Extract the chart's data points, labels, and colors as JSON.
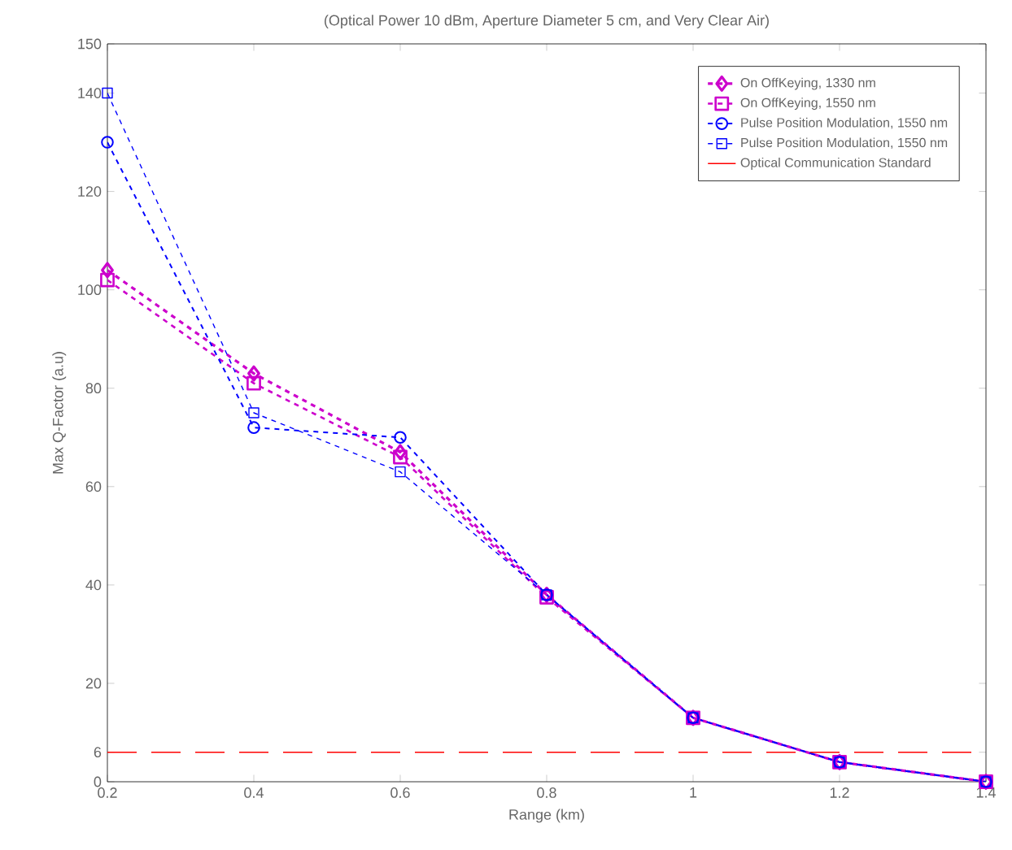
{
  "chart_data": {
    "type": "line",
    "title": "(Optical Power 10 dBm, Aperture Diameter 5 cm, and Very Clear Air)",
    "xlabel": "Range (km)",
    "ylabel": "Max Q-Factor (a.u)",
    "x": [
      0.2,
      0.4,
      0.6,
      0.8,
      1.0,
      1.2,
      1.4
    ],
    "xlim": [
      0.2,
      1.4
    ],
    "xticks": [
      0.2,
      0.4,
      0.6,
      0.8,
      {
        "value": 1.0,
        "label": "1"
      },
      1.2,
      1.4
    ],
    "ylim": [
      0,
      150
    ],
    "yticks": [
      0,
      6,
      20,
      40,
      60,
      80,
      100,
      120,
      140,
      150
    ],
    "series": [
      {
        "name": "On OffKeying, 1330 nm",
        "color": "#cc00cc",
        "marker": "diamond",
        "line_style": "dashed",
        "values": [
          104,
          83,
          67,
          38,
          13,
          4,
          0
        ]
      },
      {
        "name": "On OffKeying, 1550 nm",
        "color": "#cc00cc",
        "marker": "square",
        "line_style": "dashed",
        "values": [
          102,
          81,
          66,
          37.5,
          13,
          4,
          0
        ]
      },
      {
        "name": "Pulse Position Modulation, 1550 nm",
        "color": "#0000ff",
        "marker": "circle",
        "line_style": "dashed",
        "values": [
          130,
          72,
          70,
          38,
          13,
          4,
          0
        ]
      },
      {
        "name": "Pulse Position Modulation, 1550 nm",
        "color": "#0000ff",
        "marker": "square",
        "line_style": "dashed",
        "values": [
          140,
          75,
          63,
          38,
          13,
          4,
          0
        ]
      }
    ],
    "ref_lines": [
      {
        "axis": "y",
        "value": 6,
        "label": "Optical Communication Standard",
        "color": "#ff0000",
        "line_style": "dashed"
      }
    ],
    "grid": false,
    "legend": "top right"
  }
}
